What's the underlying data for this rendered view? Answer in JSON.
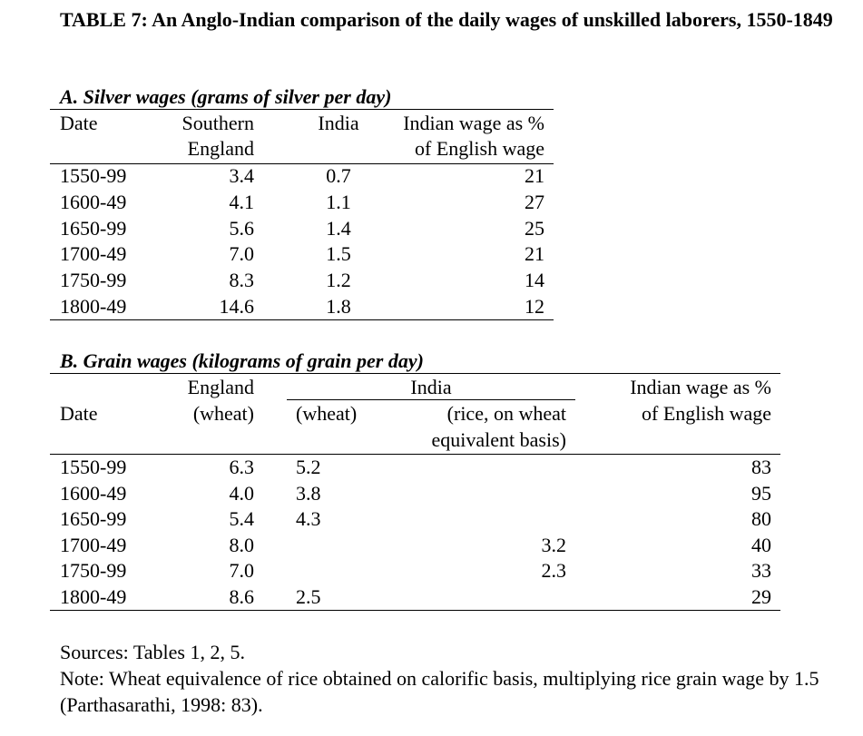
{
  "title": "TABLE 7: An Anglo-Indian comparison of the daily wages of unskilled laborers, 1550-1849",
  "partA": {
    "heading": "A. Silver wages (grams of silver per day)",
    "headers": {
      "date": "Date",
      "england_l1": "Southern",
      "england_l2": "England",
      "india": "India",
      "pct_l1": "Indian wage as %",
      "pct_l2": "of English wage"
    },
    "rows": [
      {
        "date": "1550-99",
        "england": "3.4",
        "india": "0.7",
        "pct": "21"
      },
      {
        "date": "1600-49",
        "england": "4.1",
        "india": "1.1",
        "pct": "27"
      },
      {
        "date": "1650-99",
        "england": "5.6",
        "india": "1.4",
        "pct": "25"
      },
      {
        "date": "1700-49",
        "england": "7.0",
        "india": "1.5",
        "pct": "21"
      },
      {
        "date": "1750-99",
        "england": "8.3",
        "india": "1.2",
        "pct": "14"
      },
      {
        "date": "1800-49",
        "england": "14.6",
        "india": "1.8",
        "pct": "12"
      }
    ]
  },
  "partB": {
    "heading": "B. Grain wages (kilograms of grain per day)",
    "headers": {
      "date": "Date",
      "england_l1": "England",
      "england_l2": "(wheat)",
      "india": "India",
      "wheat": "(wheat)",
      "rice_l1": "(rice, on wheat",
      "rice_l2": "equivalent basis)",
      "pct_l1": "Indian wage as %",
      "pct_l2": "of English wage"
    },
    "rows": [
      {
        "date": "1550-99",
        "england": "6.3",
        "wheat": "5.2",
        "rice": "",
        "pct": "83"
      },
      {
        "date": "1600-49",
        "england": "4.0",
        "wheat": "3.8",
        "rice": "",
        "pct": "95"
      },
      {
        "date": "1650-99",
        "england": "5.4",
        "wheat": "4.3",
        "rice": "",
        "pct": "80"
      },
      {
        "date": "1700-49",
        "england": "8.0",
        "wheat": "",
        "rice": "3.2",
        "pct": "40"
      },
      {
        "date": "1750-99",
        "england": "7.0",
        "wheat": "",
        "rice": "2.3",
        "pct": "33"
      },
      {
        "date": "1800-49",
        "england": "8.6",
        "wheat": "2.5",
        "rice": "",
        "pct": "29"
      }
    ]
  },
  "footer": {
    "sources": "Sources: Tables 1, 2, 5.",
    "note": "Note: Wheat equivalence of rice obtained on calorific basis, multiplying rice grain wage by 1.5 (Parthasarathi, 1998: 83)."
  }
}
